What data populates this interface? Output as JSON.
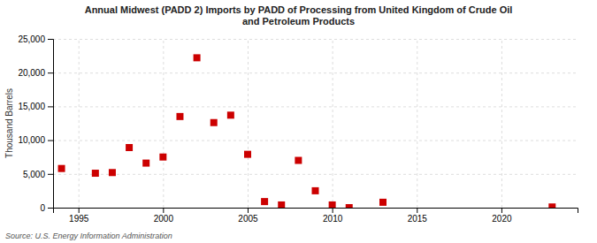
{
  "chart_data": {
    "type": "scatter",
    "title": "Annual Midwest (PADD 2) Imports by PADD of Processing from United Kingdom of Crude Oil\nand Petroleum Products",
    "ylabel": "Thousand Barrels",
    "source": "Source: U.S. Energy Information Administration",
    "x": [
      1994,
      1996,
      1997,
      1998,
      1999,
      2000,
      2001,
      2002,
      2003,
      2004,
      2005,
      2006,
      2007,
      2008,
      2009,
      2010,
      2011,
      2013,
      2023
    ],
    "values": [
      5800,
      5100,
      5200,
      8900,
      6600,
      7500,
      13500,
      22200,
      12600,
      13700,
      7900,
      900,
      400,
      7000,
      2500,
      400,
      0,
      800,
      100
    ],
    "color": "#cc0000",
    "marker": "square",
    "xlim": [
      1993.5,
      2024.5
    ],
    "ylim": [
      0,
      25000
    ],
    "xticks": [
      1995,
      2000,
      2005,
      2010,
      2015,
      2020
    ],
    "yticks": [
      0,
      {
        "value": 5000,
        "label": "5,000"
      },
      {
        "value": 10000,
        "label": "10,000"
      },
      {
        "value": 15000,
        "label": "15,000"
      },
      {
        "value": 20000,
        "label": "20,000"
      },
      {
        "value": 25000,
        "label": "25,000"
      }
    ],
    "grid": true
  }
}
